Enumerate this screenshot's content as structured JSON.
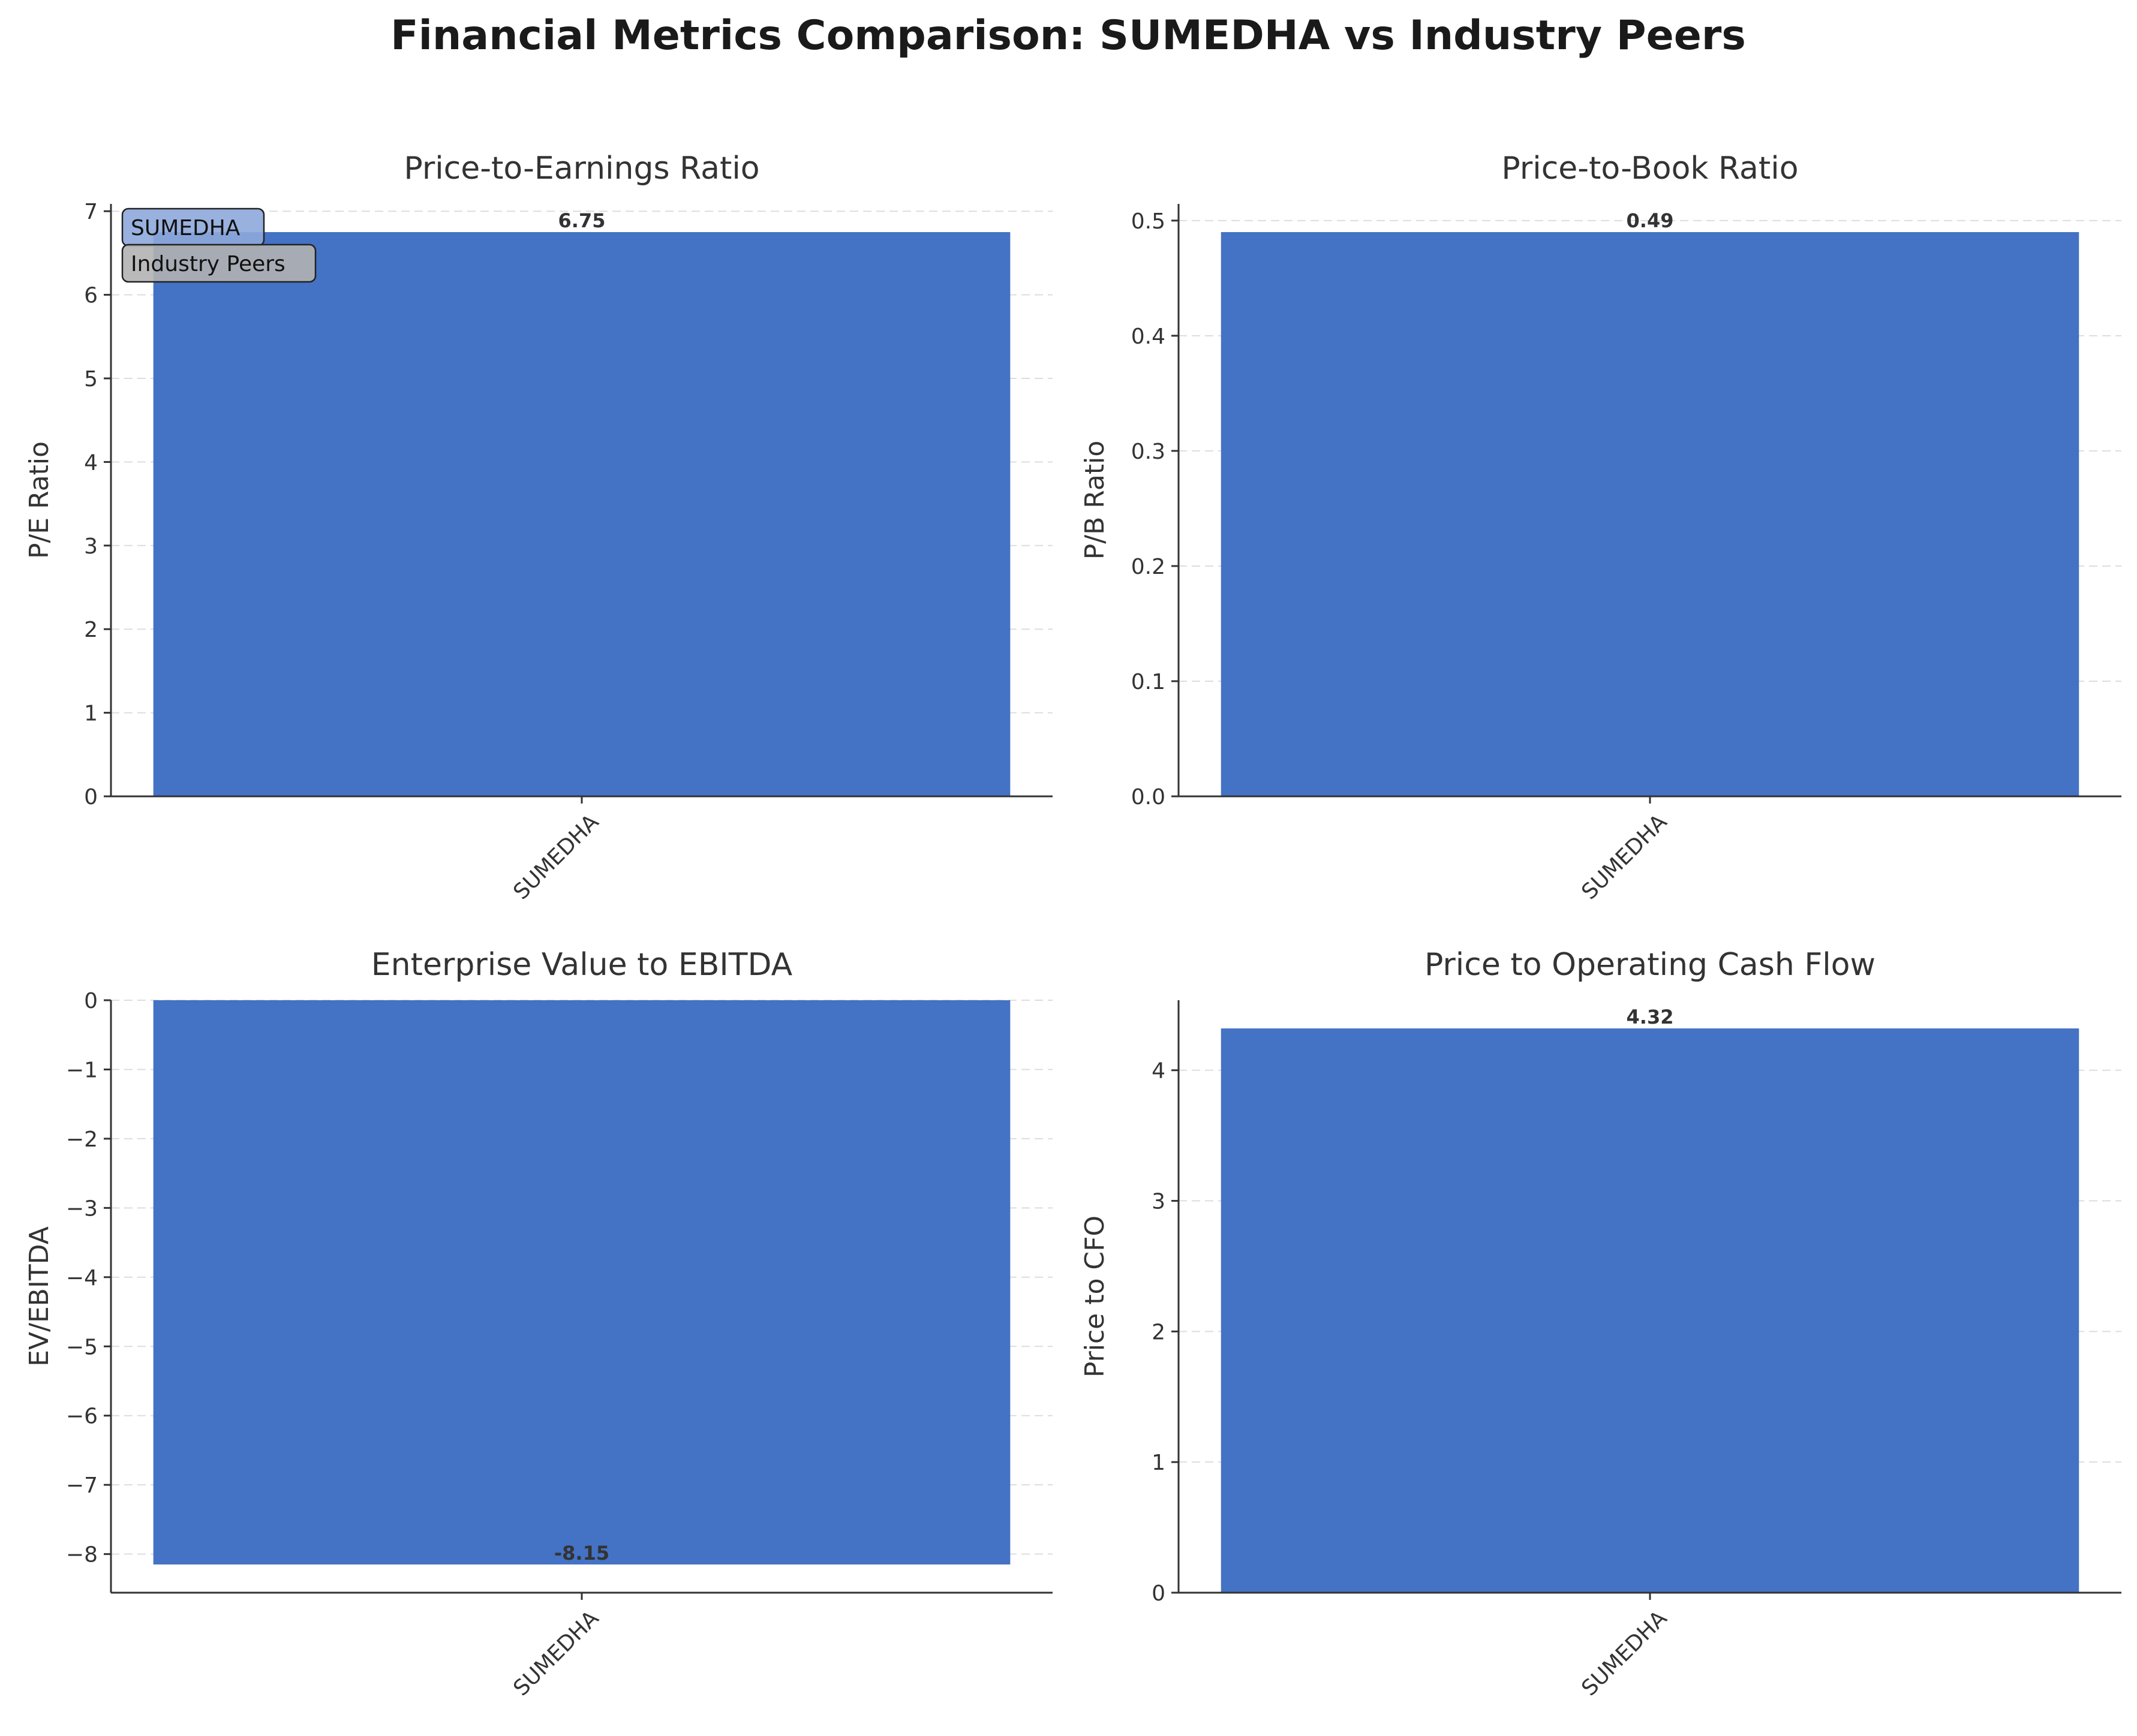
{
  "figure": {
    "title": "Financial Metrics Comparison: SUMEDHA vs Industry Peers"
  },
  "colors": {
    "bar": "#4472C4",
    "grid": "#dddddd",
    "axis": "#333333",
    "legend_sumedha": "#8ea9db",
    "legend_peers": "#b3b3b3"
  },
  "legend": {
    "placement": "upper-left of first panel",
    "items": [
      {
        "label": "SUMEDHA",
        "color": "#8ea9db"
      },
      {
        "label": "Industry Peers",
        "color": "#b3b3b3"
      }
    ]
  },
  "chart_data": [
    {
      "type": "bar",
      "title": "Price-to-Earnings Ratio",
      "ylabel": "P/E Ratio",
      "categories": [
        "SUMEDHA"
      ],
      "values": [
        6.75
      ],
      "value_labels": [
        "6.75"
      ],
      "ylim": [
        0,
        7.0875
      ],
      "yticks": [
        0,
        1,
        2,
        3,
        4,
        5,
        6,
        7
      ],
      "ytick_labels": [
        "0",
        "1",
        "2",
        "3",
        "4",
        "5",
        "6",
        "7"
      ],
      "grid": "y dashed"
    },
    {
      "type": "bar",
      "title": "Price-to-Book Ratio",
      "ylabel": "P/B Ratio",
      "categories": [
        "SUMEDHA"
      ],
      "values": [
        0.49
      ],
      "value_labels": [
        "0.49"
      ],
      "ylim": [
        0,
        0.5145
      ],
      "yticks": [
        0.0,
        0.1,
        0.2,
        0.3,
        0.4,
        0.5
      ],
      "ytick_labels": [
        "0.0",
        "0.1",
        "0.2",
        "0.3",
        "0.4",
        "0.5"
      ],
      "grid": "y dashed"
    },
    {
      "type": "bar",
      "title": "Enterprise Value to EBITDA",
      "ylabel": "EV/EBITDA",
      "categories": [
        "SUMEDHA"
      ],
      "values": [
        -8.15
      ],
      "value_labels": [
        "-8.15"
      ],
      "ylim": [
        -8.5575,
        0
      ],
      "yticks": [
        0,
        -1,
        -2,
        -3,
        -4,
        -5,
        -6,
        -7,
        -8
      ],
      "ytick_labels": [
        "0",
        "−1",
        "−2",
        "−3",
        "−4",
        "−5",
        "−6",
        "−7",
        "−8"
      ],
      "grid": "y dashed"
    },
    {
      "type": "bar",
      "title": "Price to Operating Cash Flow",
      "ylabel": "Price to CFO",
      "categories": [
        "SUMEDHA"
      ],
      "values": [
        4.32
      ],
      "value_labels": [
        "4.32"
      ],
      "ylim": [
        0,
        4.536
      ],
      "yticks": [
        0,
        1,
        2,
        3,
        4
      ],
      "ytick_labels": [
        "0",
        "1",
        "2",
        "3",
        "4"
      ],
      "grid": "y dashed"
    }
  ]
}
